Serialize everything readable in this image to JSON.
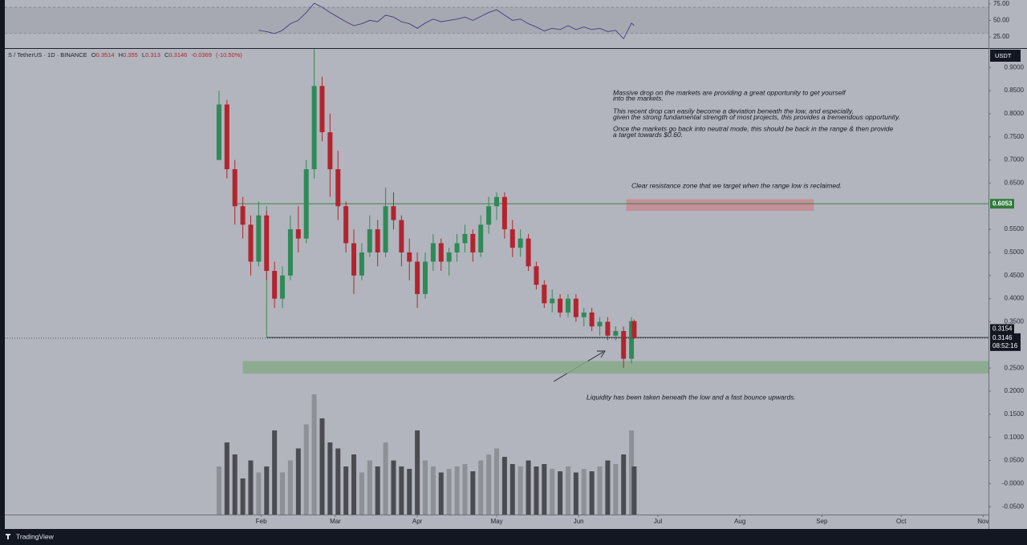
{
  "chart_data": {
    "type": "candlestick",
    "symbol": "S / TetherUS · 1D · BINANCE",
    "ohlc_prefixes": [
      "O",
      "H",
      "L",
      "C"
    ],
    "last_ohlc": [
      0.3514,
      0.355,
      0.313,
      0.3146
    ],
    "change": {
      "value": -0.0369,
      "label": "-0.0369"
    },
    "change_pct": {
      "value": -10.5,
      "label": "(-10.50%)"
    },
    "currency": "USDT",
    "x": [
      16,
      19,
      22,
      25,
      28,
      31,
      34,
      37,
      40,
      43,
      46,
      49,
      52,
      55,
      58,
      61,
      64,
      67,
      70,
      73,
      76,
      79,
      82,
      85,
      88,
      91,
      94,
      97,
      100,
      103,
      106,
      109,
      112,
      115,
      118,
      121,
      124,
      127,
      130,
      133,
      136,
      139,
      142,
      145,
      148,
      151,
      154,
      157,
      160,
      163,
      166,
      169,
      172,
      173
    ],
    "open": [
      0.7,
      0.82,
      0.68,
      0.6,
      0.56,
      0.48,
      0.58,
      0.46,
      0.4,
      0.45,
      0.55,
      0.53,
      0.68,
      0.86,
      0.76,
      0.68,
      0.6,
      0.52,
      0.45,
      0.5,
      0.55,
      0.5,
      0.6,
      0.57,
      0.5,
      0.48,
      0.41,
      0.48,
      0.52,
      0.48,
      0.5,
      0.52,
      0.54,
      0.5,
      0.56,
      0.6,
      0.62,
      0.55,
      0.51,
      0.53,
      0.47,
      0.43,
      0.39,
      0.4,
      0.37,
      0.4,
      0.36,
      0.37,
      0.34,
      0.35,
      0.32,
      0.33,
      0.27,
      0.3514
    ],
    "high": [
      0.85,
      0.83,
      0.7,
      0.62,
      0.58,
      0.61,
      0.59,
      0.48,
      0.47,
      0.58,
      0.6,
      0.7,
      0.94,
      0.88,
      0.8,
      0.72,
      0.61,
      0.55,
      0.52,
      0.58,
      0.57,
      0.64,
      0.63,
      0.58,
      0.53,
      0.5,
      0.5,
      0.54,
      0.53,
      0.51,
      0.54,
      0.56,
      0.55,
      0.58,
      0.62,
      0.63,
      0.63,
      0.57,
      0.55,
      0.54,
      0.48,
      0.44,
      0.42,
      0.41,
      0.41,
      0.41,
      0.38,
      0.38,
      0.36,
      0.36,
      0.34,
      0.34,
      0.36,
      0.355
    ],
    "low": [
      0.7,
      0.66,
      0.56,
      0.53,
      0.45,
      0.47,
      0.44,
      0.38,
      0.38,
      0.44,
      0.5,
      0.52,
      0.66,
      0.74,
      0.62,
      0.57,
      0.5,
      0.41,
      0.44,
      0.49,
      0.47,
      0.49,
      0.55,
      0.47,
      0.44,
      0.38,
      0.4,
      0.46,
      0.46,
      0.45,
      0.48,
      0.5,
      0.48,
      0.49,
      0.54,
      0.57,
      0.53,
      0.49,
      0.49,
      0.46,
      0.42,
      0.38,
      0.37,
      0.36,
      0.36,
      0.35,
      0.34,
      0.33,
      0.32,
      0.31,
      0.31,
      0.25,
      0.26,
      0.313
    ],
    "close": [
      0.82,
      0.68,
      0.6,
      0.56,
      0.48,
      0.58,
      0.46,
      0.4,
      0.45,
      0.55,
      0.53,
      0.68,
      0.86,
      0.76,
      0.68,
      0.6,
      0.52,
      0.45,
      0.5,
      0.55,
      0.5,
      0.6,
      0.57,
      0.5,
      0.48,
      0.41,
      0.48,
      0.52,
      0.48,
      0.5,
      0.52,
      0.54,
      0.5,
      0.56,
      0.6,
      0.62,
      0.55,
      0.51,
      0.53,
      0.47,
      0.43,
      0.39,
      0.4,
      0.37,
      0.4,
      0.36,
      0.37,
      0.34,
      0.35,
      0.32,
      0.33,
      0.27,
      0.3514,
      0.3146
    ],
    "volume": [
      40,
      60,
      50,
      30,
      45,
      35,
      40,
      70,
      35,
      45,
      55,
      75,
      100,
      80,
      60,
      55,
      40,
      50,
      35,
      45,
      40,
      60,
      45,
      40,
      38,
      70,
      45,
      40,
      35,
      38,
      40,
      42,
      36,
      45,
      50,
      55,
      48,
      42,
      40,
      45,
      40,
      42,
      38,
      36,
      40,
      35,
      38,
      36,
      40,
      45,
      42,
      50,
      70,
      40
    ],
    "rsi": [
      null,
      null,
      null,
      null,
      null,
      35,
      33,
      30,
      35,
      45,
      50,
      62,
      76,
      70,
      62,
      55,
      48,
      42,
      45,
      50,
      48,
      58,
      55,
      48,
      45,
      38,
      46,
      52,
      48,
      50,
      52,
      55,
      50,
      56,
      62,
      66,
      58,
      50,
      52,
      45,
      40,
      34,
      38,
      36,
      42,
      36,
      40,
      36,
      38,
      33,
      35,
      22,
      46,
      42
    ],
    "up_color": "#2f8a57",
    "down_color": "#b3242f",
    "volume_up_color": "#8d9097",
    "volume_down_color": "#4a4c52",
    "rsi_color": "#4a3a7a",
    "xlim": [
      -65,
      307
    ],
    "xticks": [
      {
        "value": 32,
        "label": "Feb"
      },
      {
        "value": 60,
        "label": "Mar"
      },
      {
        "value": 91,
        "label": "Apr"
      },
      {
        "value": 121,
        "label": "May"
      },
      {
        "value": 152,
        "label": "Jun"
      },
      {
        "value": 182,
        "label": "Jul"
      },
      {
        "value": 213,
        "label": "Aug"
      },
      {
        "value": 244,
        "label": "Sep"
      },
      {
        "value": 274,
        "label": "Oct"
      },
      {
        "value": 305,
        "label": "Nov"
      }
    ],
    "ylim": [
      -0.067,
      0.942
    ],
    "yticks": [
      {
        "value": 0.9,
        "label": "0.9000"
      },
      {
        "value": 0.85,
        "label": "0.8500"
      },
      {
        "value": 0.8,
        "label": "0.8000"
      },
      {
        "value": 0.75,
        "label": "0.7500"
      },
      {
        "value": 0.7,
        "label": "0.7000"
      },
      {
        "value": 0.65,
        "label": "0.6500"
      },
      {
        "value": 0.55,
        "label": "0.5500"
      },
      {
        "value": 0.5,
        "label": "0.5000"
      },
      {
        "value": 0.45,
        "label": "0.4500"
      },
      {
        "value": 0.4,
        "label": "0.4000"
      },
      {
        "value": 0.35,
        "label": "0.3500"
      },
      {
        "value": 0.25,
        "label": "0.2500"
      },
      {
        "value": 0.2,
        "label": "0.2000"
      },
      {
        "value": 0.15,
        "label": "0.1500"
      },
      {
        "value": 0.1,
        "label": "0.1000"
      },
      {
        "value": 0.05,
        "label": "0.0500"
      },
      {
        "value": 0,
        "label": "-0.0000"
      },
      {
        "value": -0.05,
        "label": "-0.0500"
      }
    ],
    "rsi_ylim": [
      14,
      81
    ],
    "rsi_yticks": [
      {
        "value": 75,
        "label": "75.00"
      },
      {
        "value": 50,
        "label": "50.00"
      },
      {
        "value": 25,
        "label": "25.00"
      }
    ],
    "rsi_band": [
      30,
      70
    ],
    "resistance_line": {
      "value": 0.6053,
      "label": "0.6053",
      "from": 23,
      "color": "#2f7a3a"
    },
    "range_low_line": {
      "value": 0.316,
      "from": 34
    },
    "price_labels": [
      {
        "value": 0.3154,
        "label": "0.3154"
      },
      {
        "value": 0.3146,
        "label": "0.3146"
      }
    ],
    "countdown": "08:52:16",
    "resistance_zone": {
      "x": [
        170,
        241
      ],
      "y": [
        0.59,
        0.615
      ],
      "color": "#c78a93"
    },
    "support_zone": {
      "x": [
        25,
        307
      ],
      "y": [
        0.238,
        0.265
      ],
      "color": "#86a98a"
    },
    "annotations": [
      [
        "Massive drop on the markets are providing a great opportunity to get yourself",
        "into the markets.",
        "",
        "This recent drop can easily become a deviation beneath the low, and especially,",
        "given the strong fundamental strength of most projects, this provides a tremendous opportunity.",
        "",
        "Once the markets go back into neutral mode, this should be back in the range & then provide",
        "a target towards $0.60."
      ],
      [
        "Clear resistance zone that we target when the range low is reclaimed."
      ],
      [
        "Liquidity has been taken beneath the low and a fast bounce upwards."
      ]
    ],
    "brand": "TradingView"
  }
}
